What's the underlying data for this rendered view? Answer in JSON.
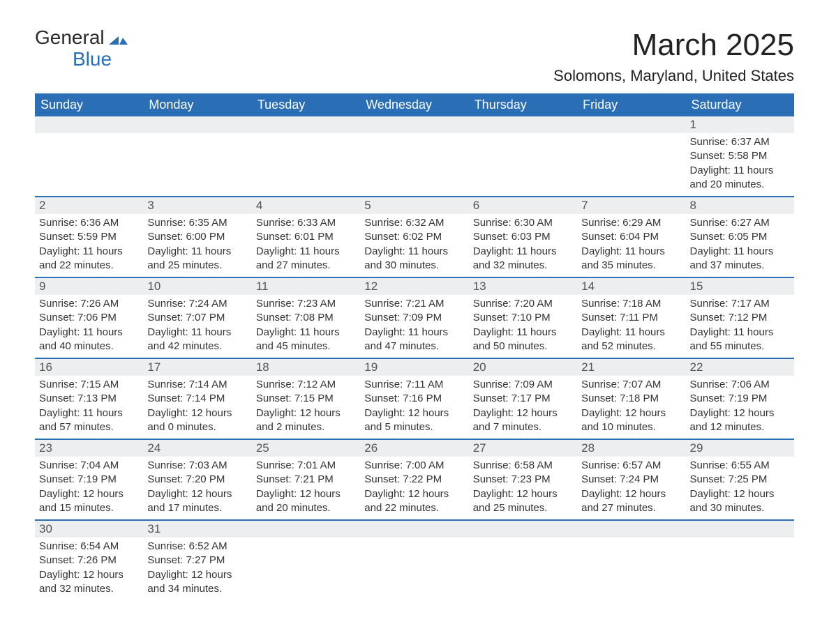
{
  "logo": {
    "line1": "General",
    "line2": "Blue",
    "icon_color": "#2a6eb5"
  },
  "title": "March 2025",
  "location": "Solomons, Maryland, United States",
  "colors": {
    "header_bg": "#2a6eb5",
    "header_text": "#ffffff",
    "strip_bg": "#eceeef",
    "body_text": "#333333",
    "page_bg": "#ffffff"
  },
  "weekdays": [
    "Sunday",
    "Monday",
    "Tuesday",
    "Wednesday",
    "Thursday",
    "Friday",
    "Saturday"
  ],
  "weeks": [
    [
      null,
      null,
      null,
      null,
      null,
      null,
      {
        "n": "1",
        "sunrise": "6:37 AM",
        "sunset": "5:58 PM",
        "daylight": "11 hours and 20 minutes."
      }
    ],
    [
      {
        "n": "2",
        "sunrise": "6:36 AM",
        "sunset": "5:59 PM",
        "daylight": "11 hours and 22 minutes."
      },
      {
        "n": "3",
        "sunrise": "6:35 AM",
        "sunset": "6:00 PM",
        "daylight": "11 hours and 25 minutes."
      },
      {
        "n": "4",
        "sunrise": "6:33 AM",
        "sunset": "6:01 PM",
        "daylight": "11 hours and 27 minutes."
      },
      {
        "n": "5",
        "sunrise": "6:32 AM",
        "sunset": "6:02 PM",
        "daylight": "11 hours and 30 minutes."
      },
      {
        "n": "6",
        "sunrise": "6:30 AM",
        "sunset": "6:03 PM",
        "daylight": "11 hours and 32 minutes."
      },
      {
        "n": "7",
        "sunrise": "6:29 AM",
        "sunset": "6:04 PM",
        "daylight": "11 hours and 35 minutes."
      },
      {
        "n": "8",
        "sunrise": "6:27 AM",
        "sunset": "6:05 PM",
        "daylight": "11 hours and 37 minutes."
      }
    ],
    [
      {
        "n": "9",
        "sunrise": "7:26 AM",
        "sunset": "7:06 PM",
        "daylight": "11 hours and 40 minutes."
      },
      {
        "n": "10",
        "sunrise": "7:24 AM",
        "sunset": "7:07 PM",
        "daylight": "11 hours and 42 minutes."
      },
      {
        "n": "11",
        "sunrise": "7:23 AM",
        "sunset": "7:08 PM",
        "daylight": "11 hours and 45 minutes."
      },
      {
        "n": "12",
        "sunrise": "7:21 AM",
        "sunset": "7:09 PM",
        "daylight": "11 hours and 47 minutes."
      },
      {
        "n": "13",
        "sunrise": "7:20 AM",
        "sunset": "7:10 PM",
        "daylight": "11 hours and 50 minutes."
      },
      {
        "n": "14",
        "sunrise": "7:18 AM",
        "sunset": "7:11 PM",
        "daylight": "11 hours and 52 minutes."
      },
      {
        "n": "15",
        "sunrise": "7:17 AM",
        "sunset": "7:12 PM",
        "daylight": "11 hours and 55 minutes."
      }
    ],
    [
      {
        "n": "16",
        "sunrise": "7:15 AM",
        "sunset": "7:13 PM",
        "daylight": "11 hours and 57 minutes."
      },
      {
        "n": "17",
        "sunrise": "7:14 AM",
        "sunset": "7:14 PM",
        "daylight": "12 hours and 0 minutes."
      },
      {
        "n": "18",
        "sunrise": "7:12 AM",
        "sunset": "7:15 PM",
        "daylight": "12 hours and 2 minutes."
      },
      {
        "n": "19",
        "sunrise": "7:11 AM",
        "sunset": "7:16 PM",
        "daylight": "12 hours and 5 minutes."
      },
      {
        "n": "20",
        "sunrise": "7:09 AM",
        "sunset": "7:17 PM",
        "daylight": "12 hours and 7 minutes."
      },
      {
        "n": "21",
        "sunrise": "7:07 AM",
        "sunset": "7:18 PM",
        "daylight": "12 hours and 10 minutes."
      },
      {
        "n": "22",
        "sunrise": "7:06 AM",
        "sunset": "7:19 PM",
        "daylight": "12 hours and 12 minutes."
      }
    ],
    [
      {
        "n": "23",
        "sunrise": "7:04 AM",
        "sunset": "7:19 PM",
        "daylight": "12 hours and 15 minutes."
      },
      {
        "n": "24",
        "sunrise": "7:03 AM",
        "sunset": "7:20 PM",
        "daylight": "12 hours and 17 minutes."
      },
      {
        "n": "25",
        "sunrise": "7:01 AM",
        "sunset": "7:21 PM",
        "daylight": "12 hours and 20 minutes."
      },
      {
        "n": "26",
        "sunrise": "7:00 AM",
        "sunset": "7:22 PM",
        "daylight": "12 hours and 22 minutes."
      },
      {
        "n": "27",
        "sunrise": "6:58 AM",
        "sunset": "7:23 PM",
        "daylight": "12 hours and 25 minutes."
      },
      {
        "n": "28",
        "sunrise": "6:57 AM",
        "sunset": "7:24 PM",
        "daylight": "12 hours and 27 minutes."
      },
      {
        "n": "29",
        "sunrise": "6:55 AM",
        "sunset": "7:25 PM",
        "daylight": "12 hours and 30 minutes."
      }
    ],
    [
      {
        "n": "30",
        "sunrise": "6:54 AM",
        "sunset": "7:26 PM",
        "daylight": "12 hours and 32 minutes."
      },
      {
        "n": "31",
        "sunrise": "6:52 AM",
        "sunset": "7:27 PM",
        "daylight": "12 hours and 34 minutes."
      },
      null,
      null,
      null,
      null,
      null
    ]
  ],
  "labels": {
    "sunrise": "Sunrise:",
    "sunset": "Sunset:",
    "daylight": "Daylight:"
  }
}
